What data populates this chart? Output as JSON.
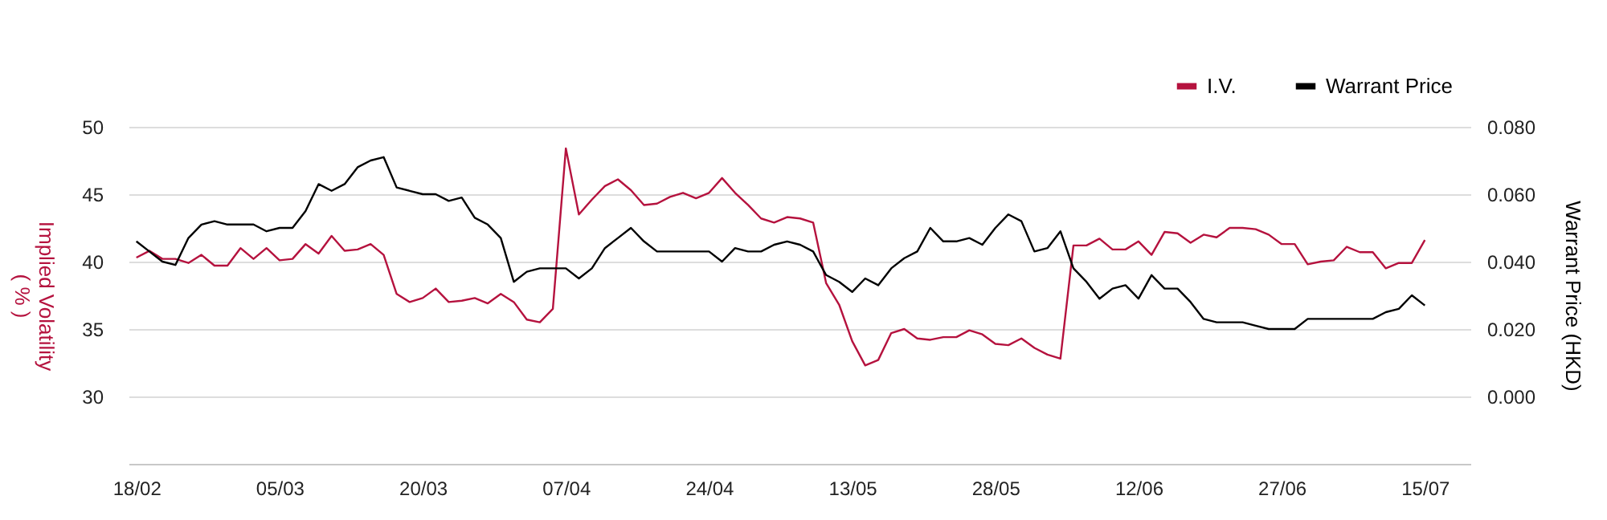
{
  "chart_data": {
    "type": "line",
    "categories": [
      "18/02",
      null,
      null,
      null,
      null,
      null,
      null,
      null,
      null,
      null,
      null,
      "05/03",
      null,
      null,
      null,
      null,
      null,
      null,
      null,
      null,
      null,
      null,
      "20/03",
      null,
      null,
      null,
      null,
      null,
      null,
      null,
      null,
      null,
      null,
      "07/04",
      null,
      null,
      null,
      null,
      null,
      null,
      null,
      null,
      null,
      null,
      "24/04",
      null,
      null,
      null,
      null,
      null,
      null,
      null,
      null,
      null,
      null,
      "13/05",
      null,
      null,
      null,
      null,
      null,
      null,
      null,
      null,
      null,
      null,
      "28/05",
      null,
      null,
      null,
      null,
      null,
      null,
      null,
      null,
      null,
      null,
      "12/06",
      null,
      null,
      null,
      null,
      null,
      null,
      null,
      null,
      null,
      null,
      "27/06",
      null,
      null,
      null,
      null,
      null,
      null,
      null,
      null,
      null,
      null,
      "15/07"
    ],
    "series": [
      {
        "name": "I.V.",
        "color": "#b5123e",
        "axis": "y",
        "values": [
          40.3,
          40.8,
          40.2,
          40.2,
          39.9,
          40.5,
          39.7,
          39.7,
          41.0,
          40.2,
          41.0,
          40.1,
          40.2,
          41.3,
          40.6,
          41.9,
          40.8,
          40.9,
          41.3,
          40.5,
          37.6,
          37.0,
          37.3,
          38.0,
          37.0,
          37.1,
          37.3,
          36.9,
          37.6,
          37.0,
          35.7,
          35.5,
          36.5,
          48.4,
          43.5,
          44.6,
          45.6,
          46.1,
          45.3,
          44.2,
          44.3,
          44.8,
          45.1,
          44.7,
          45.1,
          46.2,
          45.1,
          44.2,
          43.2,
          42.9,
          43.3,
          43.2,
          42.9,
          38.4,
          36.8,
          34.1,
          32.3,
          32.7,
          34.7,
          35.0,
          34.3,
          34.2,
          34.4,
          34.4,
          34.9,
          34.6,
          33.9,
          33.8,
          34.3,
          33.6,
          33.1,
          32.8,
          41.2,
          41.2,
          41.7,
          40.9,
          40.9,
          41.5,
          40.5,
          42.2,
          42.1,
          41.4,
          42.0,
          41.8,
          42.5,
          42.5,
          42.4,
          42.0,
          41.3,
          41.3,
          39.8,
          40.0,
          40.1,
          41.1,
          40.7,
          40.7,
          39.5,
          39.9,
          39.9,
          41.6
        ]
      },
      {
        "name": "Warrant Price",
        "color": "#000000",
        "axis": "y2",
        "values": [
          0.046,
          0.043,
          0.04,
          0.039,
          0.047,
          0.051,
          0.052,
          0.051,
          0.051,
          0.051,
          0.049,
          0.05,
          0.05,
          0.055,
          0.063,
          0.061,
          0.063,
          0.068,
          0.07,
          0.071,
          0.062,
          0.061,
          0.06,
          0.06,
          0.058,
          0.059,
          0.053,
          0.051,
          0.047,
          0.034,
          0.037,
          0.038,
          0.038,
          0.038,
          0.035,
          0.038,
          0.044,
          0.047,
          0.05,
          0.046,
          0.043,
          0.043,
          0.043,
          0.043,
          0.043,
          0.04,
          0.044,
          0.043,
          0.043,
          0.045,
          0.046,
          0.045,
          0.043,
          0.036,
          0.034,
          0.031,
          0.035,
          0.033,
          0.038,
          0.041,
          0.043,
          0.05,
          0.046,
          0.046,
          0.047,
          0.045,
          0.05,
          0.054,
          0.052,
          0.043,
          0.044,
          0.049,
          0.038,
          0.034,
          0.029,
          0.032,
          0.033,
          0.029,
          0.036,
          0.032,
          0.032,
          0.028,
          0.023,
          0.022,
          0.022,
          0.022,
          0.021,
          0.02,
          0.02,
          0.02,
          0.023,
          0.023,
          0.023,
          0.023,
          0.023,
          0.023,
          0.025,
          0.026,
          0.03,
          0.027
        ]
      }
    ],
    "ylabel": "Implied Volatility\n( % )",
    "y2label": "Warrant Price (HKD)",
    "ylim": [
      25,
      50
    ],
    "yticks": [
      30,
      35,
      40,
      45,
      50
    ],
    "y2lim": [
      -0.02,
      0.08
    ],
    "y2ticks": [
      {
        "value": 0,
        "label": "0.000"
      },
      {
        "value": 0.02,
        "label": "0.020"
      },
      {
        "value": 0.04,
        "label": "0.040"
      },
      {
        "value": 0.06,
        "label": "0.060"
      },
      {
        "value": 0.08,
        "label": "0.080"
      }
    ],
    "grid": "y",
    "legend": "top right",
    "line_style": "solid"
  }
}
